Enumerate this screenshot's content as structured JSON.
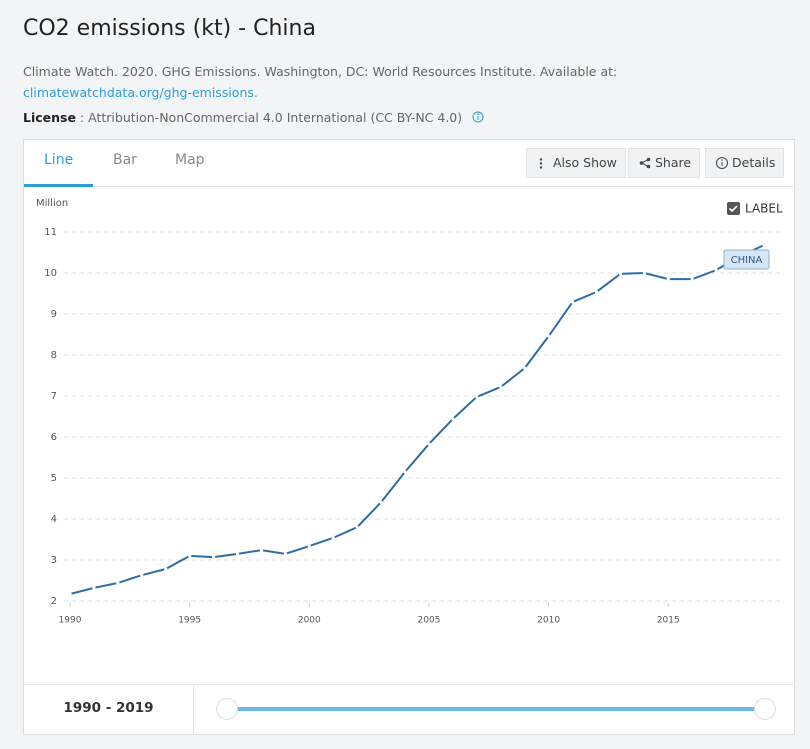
{
  "header": {
    "title": "CO2 emissions (kt) - China",
    "source": "Climate Watch. 2020. GHG Emissions. Washington, DC: World Resources Institute. Available at: ",
    "source_link": "climatewatchdata.org/ghg-emissions.",
    "license_label": "License",
    "license_text": ": Attribution-NonCommercial 4.0 International (CC BY-NC 4.0)"
  },
  "tabs": [
    "Line",
    "Bar",
    "Map"
  ],
  "buttons": [
    "Also Show",
    "Share",
    "Details"
  ],
  "label_toggle": "LABEL",
  "range": "1990 - 2019",
  "chart_data": {
    "type": "line",
    "y_label": "Million",
    "x": [
      1990,
      1991,
      1992,
      1993,
      1994,
      1995,
      1996,
      1997,
      1998,
      1999,
      2000,
      2001,
      2002,
      2003,
      2004,
      2005,
      2006,
      2007,
      2008,
      2009,
      2010,
      2011,
      2012,
      2013,
      2014,
      2015,
      2016,
      2017,
      2018,
      2019
    ],
    "series": [
      {
        "name": "CHINA",
        "color": "#2e6da4",
        "values": [
          2.17,
          2.32,
          2.44,
          2.63,
          2.78,
          3.1,
          3.07,
          3.15,
          3.24,
          3.15,
          3.34,
          3.54,
          3.8,
          4.41,
          5.15,
          5.83,
          6.44,
          6.98,
          7.22,
          7.68,
          8.46,
          9.29,
          9.54,
          9.98,
          10.0,
          9.85,
          9.85,
          10.07,
          10.41,
          10.68
        ]
      }
    ],
    "xlim": [
      1990,
      2019
    ],
    "xticks": [
      1990,
      1995,
      2000,
      2005,
      2010,
      2015
    ],
    "ylim": [
      2,
      11
    ],
    "yticks": [
      2,
      3,
      4,
      5,
      6,
      7,
      8,
      9,
      10,
      11
    ],
    "grid": true
  }
}
